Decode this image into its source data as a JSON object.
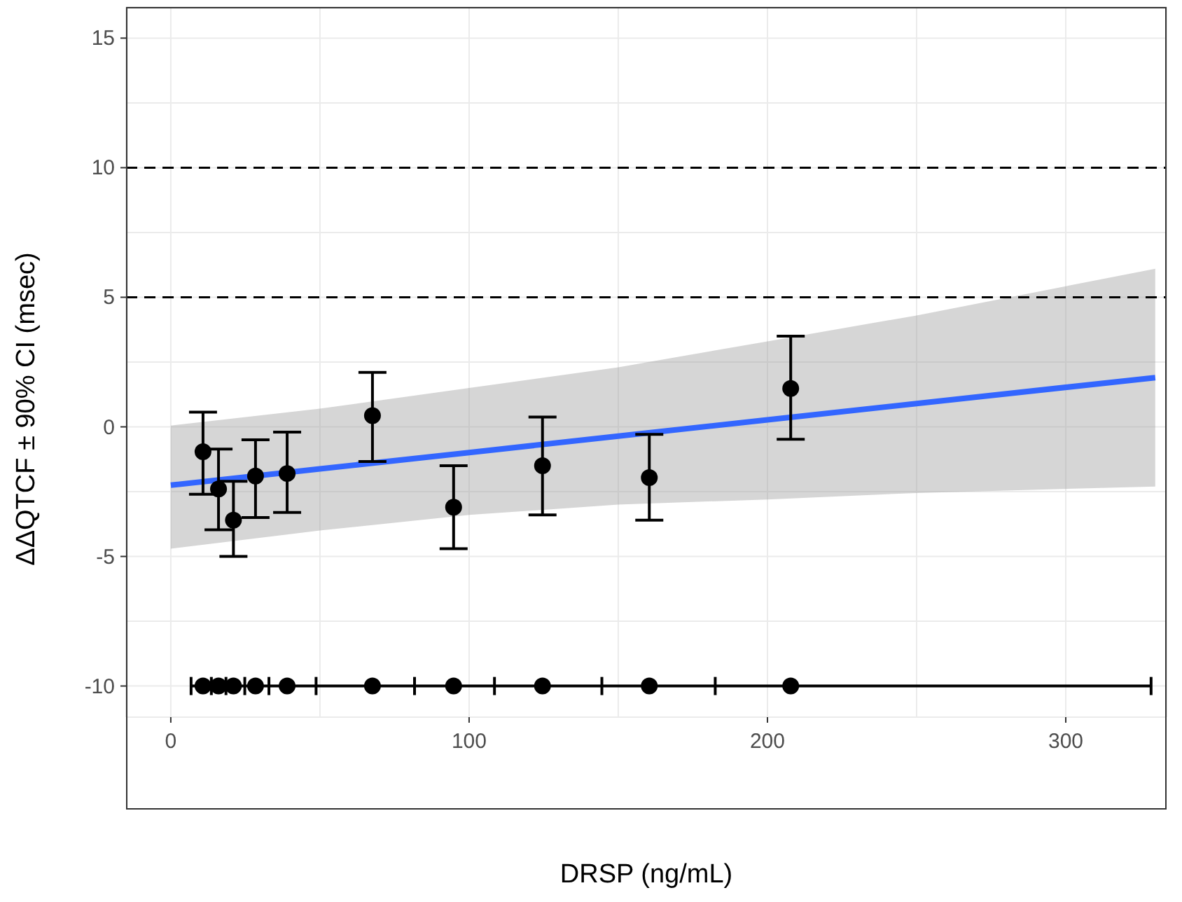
{
  "chart_data": {
    "type": "scatter",
    "xlabel": "DRSP (ng/mL)",
    "ylabel": "ΔΔQTCF ± 90% CI (msec)",
    "xlim": [
      -15,
      333.8
    ],
    "ylim": [
      -11.2,
      16.2
    ],
    "xticks": [
      0,
      {
        "value": 50,
        "label": null
      },
      100,
      {
        "value": 150,
        "label": null
      },
      200,
      {
        "value": 250,
        "label": null
      },
      300
    ],
    "yticks": [
      -10,
      {
        "value": -7.5,
        "label": null
      },
      -5,
      {
        "value": -2.5,
        "label": null
      },
      0,
      {
        "value": 2.5,
        "label": null
      },
      5,
      {
        "value": 7.5,
        "label": null
      },
      10,
      {
        "value": 12.5,
        "label": null
      },
      15
    ],
    "grid": true,
    "ref_lines": [
      {
        "axis": "y",
        "value": 5,
        "color": "#000000",
        "line_style": "dashed"
      },
      {
        "axis": "y",
        "value": 10,
        "color": "#000000",
        "line_style": "dashed"
      }
    ],
    "series": [
      {
        "type": "line",
        "color": "#3366ff",
        "marker": "none",
        "x": [
          0,
          50,
          100,
          150,
          200,
          250,
          330
        ],
        "values": [
          -2.25,
          -1.62,
          -0.99,
          -0.36,
          0.27,
          0.9,
          1.9
        ],
        "lower": [
          -4.7,
          -4.0,
          -3.4,
          -3.0,
          -2.8,
          -2.55,
          -2.3
        ],
        "upper": [
          0.05,
          0.7,
          1.5,
          2.3,
          3.3,
          4.3,
          6.1
        ]
      },
      {
        "color": "#000000",
        "marker": "circle",
        "x": [
          10.8,
          16,
          21,
          28.4,
          39,
          67.6,
          94.8,
          124.6,
          160.4,
          207.8
        ],
        "values": [
          -0.96,
          -2.4,
          -3.6,
          -1.9,
          -1.8,
          0.43,
          -3.1,
          -1.5,
          -1.96,
          1.48
        ],
        "errors": [
          [
            -2.6,
            0.57
          ],
          [
            -3.97,
            -0.86
          ],
          [
            -5.0,
            -2.1
          ],
          [
            -3.5,
            -0.5
          ],
          [
            -3.3,
            -0.2
          ],
          [
            -1.34,
            2.1
          ],
          [
            -4.7,
            -1.5
          ],
          [
            -3.4,
            0.38
          ],
          [
            -3.6,
            -0.29
          ],
          [
            -0.48,
            3.5
          ]
        ]
      },
      {
        "type": "line",
        "color": "#000000",
        "marker": "none",
        "x": [
          6.8,
          13.6,
          18.5,
          24.8,
          32.9,
          48.7,
          81.7,
          108.5,
          144.5,
          182.5,
          328.6
        ],
        "values": [
          -10,
          -10,
          -10,
          -10,
          -10,
          -10,
          -10,
          -10,
          -10,
          -10,
          -10
        ],
        "errors": [
          0.35,
          0.35,
          0.35,
          0.35,
          0.35,
          0.35,
          0.35,
          0.35,
          0.35,
          0.35,
          0.35
        ]
      },
      {
        "color": "#000000",
        "marker": "circle",
        "x": [
          10.8,
          16,
          21,
          28.4,
          39,
          67.6,
          94.8,
          124.6,
          160.4,
          207.8
        ],
        "values": [
          -10,
          -10,
          -10,
          -10,
          -10,
          -10,
          -10,
          -10,
          -10,
          -10
        ]
      }
    ]
  }
}
